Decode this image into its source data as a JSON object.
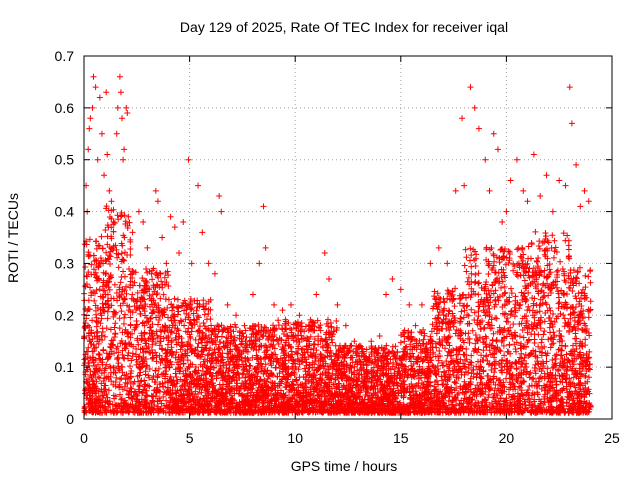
{
  "chart_data": {
    "type": "scatter",
    "title": "Day 129 of 2025, Rate Of TEC Index for receiver iqal",
    "xlabel": "GPS time / hours",
    "ylabel": "ROTI / TECUs",
    "xlim": [
      0,
      25
    ],
    "ylim": [
      0,
      0.7
    ],
    "xticks": [
      0,
      5,
      10,
      15,
      20,
      25
    ],
    "yticks": [
      0,
      0.1,
      0.2,
      0.3,
      0.4,
      0.5,
      0.6,
      0.7
    ],
    "xtick_labels": [
      "0",
      "5",
      "10",
      "15",
      "20",
      "25"
    ],
    "ytick_labels": [
      "0",
      "0.1",
      "0.2",
      "0.3",
      "0.4",
      "0.5",
      "0.6",
      "0.7"
    ],
    "grid": true,
    "legend": "none",
    "marker": "plus",
    "series_color": "#ff0000",
    "points": [
      [
        0.1,
        0.45
      ],
      [
        0.15,
        0.4
      ],
      [
        0.2,
        0.52
      ],
      [
        0.25,
        0.56
      ],
      [
        0.3,
        0.58
      ],
      [
        0.4,
        0.6
      ],
      [
        0.45,
        0.66
      ],
      [
        0.55,
        0.64
      ],
      [
        0.65,
        0.5
      ],
      [
        0.75,
        0.62
      ],
      [
        0.85,
        0.55
      ],
      [
        0.95,
        0.47
      ],
      [
        1.05,
        0.63
      ],
      [
        1.1,
        0.51
      ],
      [
        1.2,
        0.44
      ],
      [
        1.3,
        0.42
      ],
      [
        1.4,
        0.38
      ],
      [
        1.55,
        0.55
      ],
      [
        1.6,
        0.6
      ],
      [
        1.7,
        0.66
      ],
      [
        1.75,
        0.63
      ],
      [
        1.8,
        0.58
      ],
      [
        1.85,
        0.5
      ],
      [
        1.9,
        0.52
      ],
      [
        2.0,
        0.6
      ],
      [
        2.05,
        0.59
      ],
      [
        2.1,
        0.39
      ],
      [
        2.3,
        0.36
      ],
      [
        2.6,
        0.4
      ],
      [
        2.8,
        0.38
      ],
      [
        3.0,
        0.33
      ],
      [
        3.2,
        0.28
      ],
      [
        3.4,
        0.44
      ],
      [
        3.5,
        0.42
      ],
      [
        3.7,
        0.35
      ],
      [
        3.9,
        0.3
      ],
      [
        4.1,
        0.39
      ],
      [
        4.3,
        0.37
      ],
      [
        4.5,
        0.32
      ],
      [
        4.7,
        0.38
      ],
      [
        4.95,
        0.5
      ],
      [
        5.1,
        0.3
      ],
      [
        5.4,
        0.45
      ],
      [
        5.6,
        0.36
      ],
      [
        5.9,
        0.3
      ],
      [
        6.2,
        0.28
      ],
      [
        6.4,
        0.43
      ],
      [
        6.5,
        0.4
      ],
      [
        6.8,
        0.22
      ],
      [
        7.2,
        0.2
      ],
      [
        7.6,
        0.18
      ],
      [
        8.0,
        0.24
      ],
      [
        8.3,
        0.3
      ],
      [
        8.5,
        0.41
      ],
      [
        8.6,
        0.33
      ],
      [
        9.0,
        0.22
      ],
      [
        9.4,
        0.21
      ],
      [
        9.8,
        0.22
      ],
      [
        10.2,
        0.2
      ],
      [
        10.7,
        0.18
      ],
      [
        11.0,
        0.24
      ],
      [
        11.4,
        0.32
      ],
      [
        11.6,
        0.27
      ],
      [
        12.0,
        0.22
      ],
      [
        12.4,
        0.18
      ],
      [
        12.8,
        0.15
      ],
      [
        13.2,
        0.13
      ],
      [
        13.6,
        0.15
      ],
      [
        14.0,
        0.16
      ],
      [
        14.3,
        0.24
      ],
      [
        14.6,
        0.27
      ],
      [
        15.0,
        0.25
      ],
      [
        15.4,
        0.22
      ],
      [
        15.7,
        0.18
      ],
      [
        16.0,
        0.22
      ],
      [
        16.4,
        0.3
      ],
      [
        16.8,
        0.33
      ],
      [
        17.2,
        0.3
      ],
      [
        17.6,
        0.44
      ],
      [
        17.9,
        0.58
      ],
      [
        18.0,
        0.45
      ],
      [
        18.3,
        0.64
      ],
      [
        18.5,
        0.6
      ],
      [
        18.7,
        0.56
      ],
      [
        19.0,
        0.5
      ],
      [
        19.2,
        0.44
      ],
      [
        19.4,
        0.55
      ],
      [
        19.6,
        0.52
      ],
      [
        19.8,
        0.38
      ],
      [
        20.0,
        0.4
      ],
      [
        20.2,
        0.46
      ],
      [
        20.5,
        0.5
      ],
      [
        20.8,
        0.44
      ],
      [
        21.0,
        0.42
      ],
      [
        21.3,
        0.51
      ],
      [
        21.6,
        0.43
      ],
      [
        21.9,
        0.47
      ],
      [
        22.2,
        0.4
      ],
      [
        22.5,
        0.46
      ],
      [
        22.8,
        0.45
      ],
      [
        23.0,
        0.64
      ],
      [
        23.1,
        0.57
      ],
      [
        23.3,
        0.49
      ],
      [
        23.5,
        0.41
      ],
      [
        23.7,
        0.44
      ],
      [
        23.9,
        0.42
      ]
    ]
  }
}
